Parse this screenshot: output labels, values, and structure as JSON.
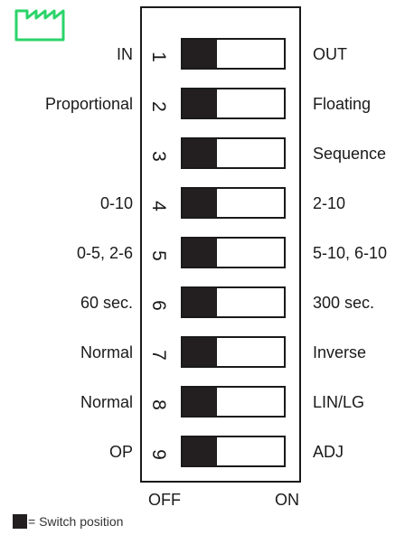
{
  "logo": {
    "icon": "factory-icon",
    "color": "#2bd46a"
  },
  "switches": [
    {
      "number": "1",
      "left_label": "IN",
      "right_label": "OUT",
      "position": "off"
    },
    {
      "number": "2",
      "left_label": "Proportional",
      "right_label": "Floating",
      "position": "off"
    },
    {
      "number": "3",
      "left_label": "",
      "right_label": "Sequence",
      "position": "off"
    },
    {
      "number": "4",
      "left_label": "0-10",
      "right_label": "2-10",
      "position": "off"
    },
    {
      "number": "5",
      "left_label": "0-5, 2-6",
      "right_label": "5-10, 6-10",
      "position": "off"
    },
    {
      "number": "6",
      "left_label": "60 sec.",
      "right_label": "300 sec.",
      "position": "off"
    },
    {
      "number": "7",
      "left_label": "Normal",
      "right_label": "Inverse",
      "position": "off"
    },
    {
      "number": "8",
      "left_label": "Normal",
      "right_label": "LIN/LG",
      "position": "off"
    },
    {
      "number": "9",
      "left_label": "OP",
      "right_label": "ADJ",
      "position": "off"
    }
  ],
  "footer": {
    "off_label": "OFF",
    "on_label": "ON"
  },
  "legend": {
    "text": "= Switch position",
    "swatch_color": "#231f20"
  }
}
